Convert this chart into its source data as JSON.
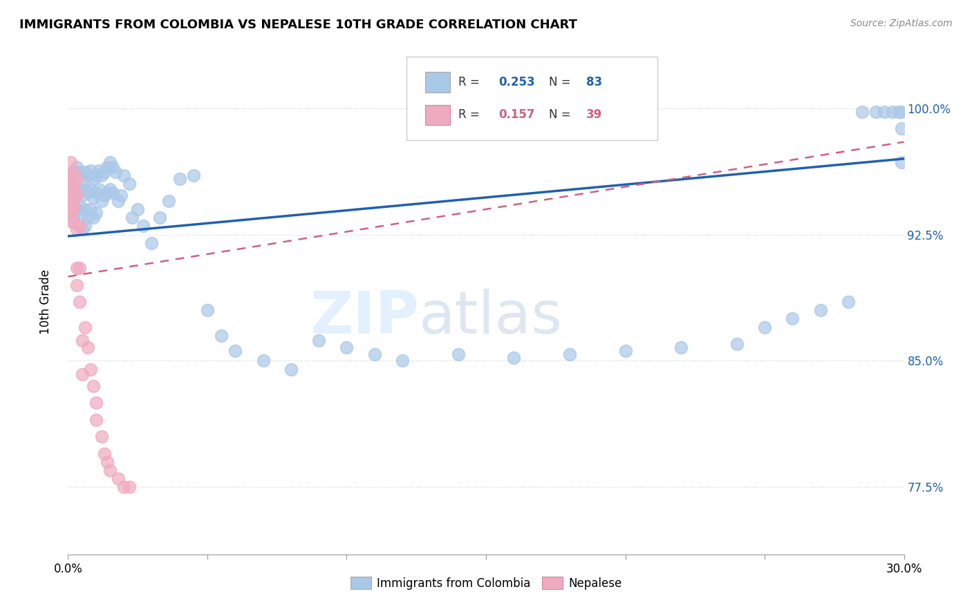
{
  "title": "IMMIGRANTS FROM COLOMBIA VS NEPALESE 10TH GRADE CORRELATION CHART",
  "source": "Source: ZipAtlas.com",
  "ylabel": "10th Grade",
  "ytick_labels": [
    "77.5%",
    "85.0%",
    "92.5%",
    "100.0%"
  ],
  "ytick_values": [
    0.775,
    0.85,
    0.925,
    1.0
  ],
  "xlim": [
    0.0,
    0.3
  ],
  "ylim": [
    0.735,
    1.035
  ],
  "legend_label_blue": "Immigrants from Colombia",
  "legend_label_pink": "Nepalese",
  "blue_scatter_color": "#aac8e8",
  "pink_scatter_color": "#f0aabf",
  "blue_line_color": "#2060b0",
  "pink_line_color": "#d06080",
  "watermark_color": "#ddeeff",
  "colombia_x": [
    0.001,
    0.001,
    0.002,
    0.002,
    0.002,
    0.003,
    0.003,
    0.003,
    0.004,
    0.004,
    0.004,
    0.005,
    0.005,
    0.005,
    0.005,
    0.006,
    0.006,
    0.006,
    0.006,
    0.007,
    0.007,
    0.007,
    0.008,
    0.008,
    0.008,
    0.009,
    0.009,
    0.009,
    0.01,
    0.01,
    0.01,
    0.011,
    0.011,
    0.012,
    0.012,
    0.013,
    0.013,
    0.014,
    0.014,
    0.015,
    0.015,
    0.016,
    0.016,
    0.017,
    0.018,
    0.019,
    0.02,
    0.022,
    0.023,
    0.025,
    0.027,
    0.03,
    0.033,
    0.036,
    0.04,
    0.045,
    0.05,
    0.055,
    0.06,
    0.07,
    0.08,
    0.09,
    0.1,
    0.11,
    0.12,
    0.14,
    0.16,
    0.18,
    0.2,
    0.22,
    0.24,
    0.25,
    0.26,
    0.27,
    0.28,
    0.285,
    0.29,
    0.293,
    0.296,
    0.298,
    0.299,
    0.299,
    0.299
  ],
  "colombia_y": [
    0.96,
    0.95,
    0.955,
    0.945,
    0.935,
    0.965,
    0.95,
    0.94,
    0.962,
    0.952,
    0.942,
    0.958,
    0.948,
    0.938,
    0.928,
    0.962,
    0.952,
    0.94,
    0.93,
    0.96,
    0.95,
    0.935,
    0.963,
    0.952,
    0.94,
    0.958,
    0.947,
    0.935,
    0.96,
    0.95,
    0.938,
    0.963,
    0.952,
    0.96,
    0.945,
    0.962,
    0.948,
    0.965,
    0.95,
    0.968,
    0.952,
    0.965,
    0.95,
    0.962,
    0.945,
    0.948,
    0.96,
    0.955,
    0.935,
    0.94,
    0.93,
    0.92,
    0.935,
    0.945,
    0.958,
    0.96,
    0.88,
    0.865,
    0.856,
    0.85,
    0.845,
    0.862,
    0.858,
    0.854,
    0.85,
    0.854,
    0.852,
    0.854,
    0.856,
    0.858,
    0.86,
    0.87,
    0.875,
    0.88,
    0.885,
    0.998,
    0.998,
    0.998,
    0.998,
    0.998,
    0.998,
    0.988,
    0.968
  ],
  "nepalese_x": [
    0.0,
    0.0,
    0.001,
    0.001,
    0.001,
    0.001,
    0.001,
    0.001,
    0.001,
    0.002,
    0.002,
    0.002,
    0.002,
    0.002,
    0.002,
    0.002,
    0.003,
    0.003,
    0.003,
    0.003,
    0.003,
    0.004,
    0.004,
    0.004,
    0.005,
    0.005,
    0.006,
    0.007,
    0.008,
    0.009,
    0.01,
    0.01,
    0.012,
    0.013,
    0.014,
    0.015,
    0.018,
    0.02,
    0.022
  ],
  "nepalese_y": [
    0.96,
    0.945,
    0.968,
    0.958,
    0.948,
    0.938,
    0.958,
    0.948,
    0.938,
    0.962,
    0.952,
    0.942,
    0.932,
    0.952,
    0.942,
    0.932,
    0.958,
    0.948,
    0.928,
    0.905,
    0.895,
    0.93,
    0.905,
    0.885,
    0.862,
    0.842,
    0.87,
    0.858,
    0.845,
    0.835,
    0.825,
    0.815,
    0.805,
    0.795,
    0.79,
    0.785,
    0.78,
    0.775,
    0.775
  ],
  "blue_line_x0": 0.0,
  "blue_line_x1": 0.3,
  "blue_line_y0": 0.924,
  "blue_line_y1": 0.97,
  "pink_line_x0": 0.0,
  "pink_line_x1": 0.3,
  "pink_line_y0": 0.9,
  "pink_line_y1": 0.98
}
